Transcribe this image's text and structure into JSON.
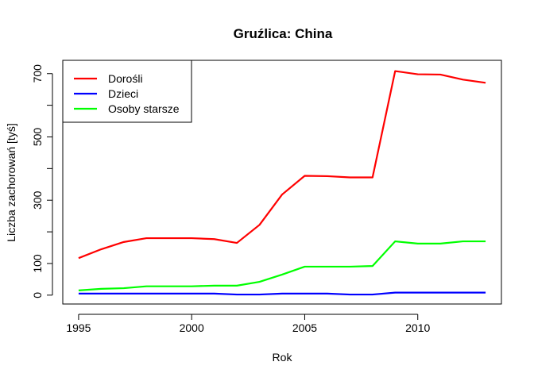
{
  "chart_data": {
    "type": "line",
    "title": "Gruźlica: China",
    "xlabel": "Rok",
    "ylabel": "Liczba zachorowań [tyś]",
    "xlim": [
      1994.3,
      2013.7
    ],
    "ylim": [
      -28,
      742
    ],
    "x_ticks": [
      1995,
      2000,
      2005,
      2010
    ],
    "y_ticks": [
      0,
      100,
      200,
      300,
      400,
      500,
      600,
      700
    ],
    "y_tick_labels": [
      "0",
      "100",
      "",
      "300",
      "",
      "500",
      "",
      "700"
    ],
    "x": [
      1995,
      1996,
      1997,
      1998,
      1999,
      2000,
      2001,
      2002,
      2003,
      2004,
      2005,
      2006,
      2007,
      2008,
      2009,
      2010,
      2011,
      2012,
      2013
    ],
    "series": [
      {
        "name": "Dorośli",
        "color": "#ff0000",
        "values": [
          117,
          145,
          168,
          180,
          180,
          180,
          177,
          165,
          222,
          318,
          377,
          376,
          372,
          372,
          708,
          698,
          697,
          681,
          671
        ]
      },
      {
        "name": "Dzieci",
        "color": "#0000ff",
        "values": [
          5,
          5,
          5,
          5,
          5,
          5,
          5,
          2,
          2,
          5,
          5,
          5,
          2,
          2,
          8,
          8,
          8,
          8,
          8
        ]
      },
      {
        "name": "Osoby starsze",
        "color": "#00ff00",
        "values": [
          15,
          20,
          22,
          28,
          28,
          28,
          30,
          30,
          42,
          65,
          90,
          90,
          90,
          92,
          170,
          163,
          163,
          170,
          170
        ]
      }
    ],
    "legend_position": "top-left",
    "grid": false
  }
}
